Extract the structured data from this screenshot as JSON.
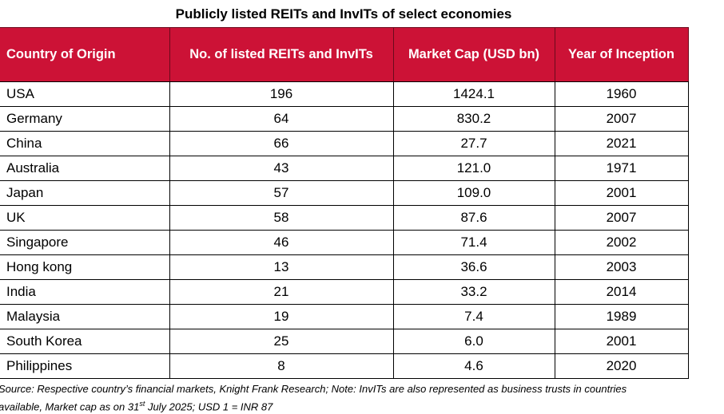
{
  "title": "Publicly listed REITs and InvITs of select economies",
  "colors": {
    "header_bg": "#cc1236",
    "header_text": "#ffffff",
    "border": "#000000"
  },
  "table": {
    "columns": [
      "Country of Origin",
      "No. of listed REITs and InvITs",
      "Market Cap (USD bn)",
      "Year of Inception"
    ],
    "rows": [
      [
        "USA",
        "196",
        "1424.1",
        "1960"
      ],
      [
        "Germany",
        "64",
        "830.2",
        "2007"
      ],
      [
        "China",
        "66",
        "27.7",
        "2021"
      ],
      [
        "Australia",
        "43",
        "121.0",
        "1971"
      ],
      [
        "Japan",
        "57",
        "109.0",
        "2001"
      ],
      [
        "UK",
        "58",
        "87.6",
        "2007"
      ],
      [
        "Singapore",
        "46",
        "71.4",
        "2002"
      ],
      [
        "Hong kong",
        "13",
        "36.6",
        "2003"
      ],
      [
        "India",
        "21",
        "33.2",
        "2014"
      ],
      [
        "Malaysia",
        "19",
        "7.4",
        "1989"
      ],
      [
        "South Korea",
        "25",
        "6.0",
        "2001"
      ],
      [
        "Philippines",
        "8",
        "4.6",
        "2020"
      ]
    ]
  },
  "note": {
    "line1": "Source: Respective country’s financial markets, Knight Frank Research; Note: InvITs are also represented as business trusts in countries",
    "line2_before_sup": "available, Market cap as on 31",
    "line2_sup": "st",
    "line2_after_sup": " July 2025; USD 1 = INR 87"
  }
}
